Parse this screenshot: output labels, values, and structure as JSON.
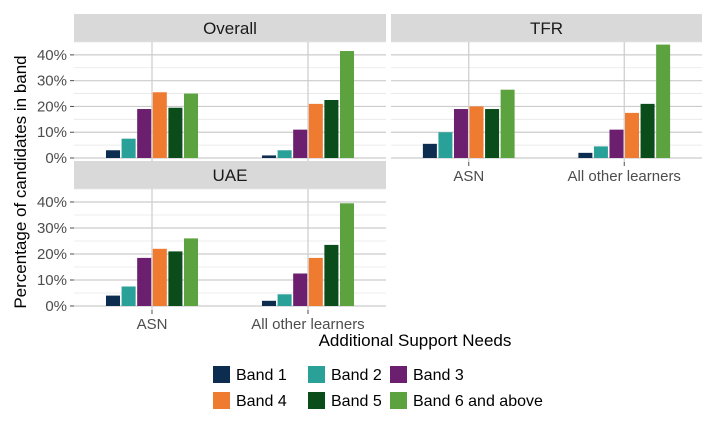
{
  "chart_data": {
    "type": "bar",
    "ylabel": "Percentage of candidates in band",
    "xlabel": "Additional Support Needs",
    "categories": [
      "ASN",
      "All other learners"
    ],
    "ylim": [
      0,
      45
    ],
    "yticks": [
      0,
      10,
      20,
      30,
      40
    ],
    "ytick_labels": [
      "0%",
      "10%",
      "20%",
      "30%",
      "40%"
    ],
    "legend_position": "bottom",
    "series": [
      {
        "name": "Band 1",
        "color": "#0d2d50"
      },
      {
        "name": "Band 2",
        "color": "#2aa198"
      },
      {
        "name": "Band 3",
        "color": "#6b1f6e"
      },
      {
        "name": "Band 4",
        "color": "#ef7b30"
      },
      {
        "name": "Band 5",
        "color": "#0b4d1a"
      },
      {
        "name": "Band 6 and above",
        "color": "#5ca33f"
      }
    ],
    "panels": [
      {
        "title": "Overall",
        "values": {
          "ASN": [
            3,
            7.5,
            19,
            25.5,
            19.5,
            25
          ],
          "All other learners": [
            1,
            3,
            11,
            21,
            22.5,
            41.5
          ]
        }
      },
      {
        "title": "TFR",
        "values": {
          "ASN": [
            5.5,
            10,
            19,
            20,
            19,
            26.5
          ],
          "All other learners": [
            2,
            4.5,
            11,
            17.5,
            21,
            44
          ]
        }
      },
      {
        "title": "UAE",
        "values": {
          "ASN": [
            4,
            7.5,
            18.5,
            22,
            21,
            26
          ],
          "All other learners": [
            2,
            4.5,
            12.5,
            18.5,
            23.5,
            39.5
          ]
        }
      }
    ]
  }
}
